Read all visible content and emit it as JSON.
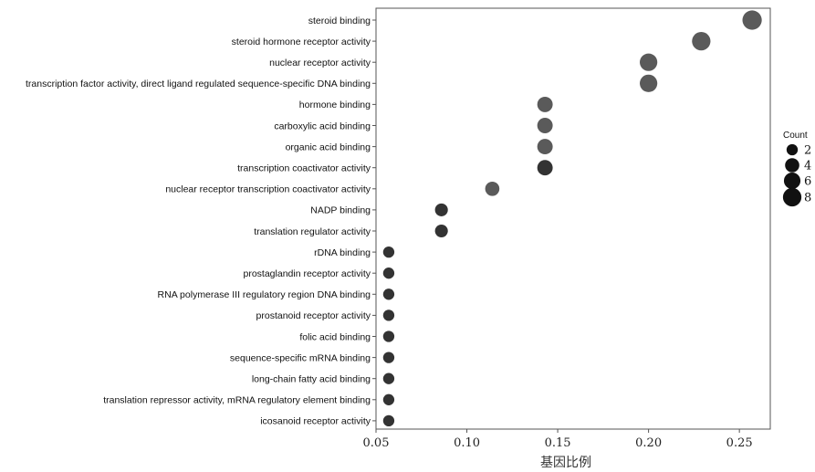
{
  "chart_data": {
    "type": "scatter",
    "title": "",
    "xlabel": "基因比例",
    "ylabel": "",
    "xlim": [
      0.05,
      0.267
    ],
    "xticks": [
      "0.05",
      "0.10",
      "0.15",
      "0.20",
      "0.25"
    ],
    "xtick_values": [
      0.05,
      0.1,
      0.15,
      0.2,
      0.25
    ],
    "grid": false,
    "legend": {
      "title": "Count",
      "position": "right",
      "entries": [
        {
          "label": "2",
          "value": 2
        },
        {
          "label": "4",
          "value": 4
        },
        {
          "label": "6",
          "value": 6
        },
        {
          "label": "8",
          "value": 8
        }
      ]
    },
    "point_colors": {
      "high": "#5a5a5a",
      "low": "#333333"
    },
    "points": [
      {
        "category": "steroid binding",
        "x": 0.257,
        "count": 9,
        "color": "#5a5a5a"
      },
      {
        "category": "steroid hormone receptor activity",
        "x": 0.229,
        "count": 8,
        "color": "#5a5a5a"
      },
      {
        "category": "nuclear receptor activity",
        "x": 0.2,
        "count": 7,
        "color": "#5a5a5a"
      },
      {
        "category": "transcription factor activity, direct ligand regulated sequence-specific DNA binding",
        "x": 0.2,
        "count": 7,
        "color": "#5a5a5a"
      },
      {
        "category": "hormone binding",
        "x": 0.143,
        "count": 5,
        "color": "#5a5a5a"
      },
      {
        "category": "carboxylic acid binding",
        "x": 0.143,
        "count": 5,
        "color": "#5a5a5a"
      },
      {
        "category": "organic acid binding",
        "x": 0.143,
        "count": 5,
        "color": "#5a5a5a"
      },
      {
        "category": "transcription coactivator activity",
        "x": 0.143,
        "count": 5,
        "color": "#333333"
      },
      {
        "category": "nuclear receptor transcription coactivator activity",
        "x": 0.114,
        "count": 4,
        "color": "#5a5a5a"
      },
      {
        "category": "NADP binding",
        "x": 0.086,
        "count": 3,
        "color": "#333333"
      },
      {
        "category": "translation regulator activity",
        "x": 0.086,
        "count": 3,
        "color": "#333333"
      },
      {
        "category": "rDNA binding",
        "x": 0.057,
        "count": 2,
        "color": "#333333"
      },
      {
        "category": "prostaglandin receptor activity",
        "x": 0.057,
        "count": 2,
        "color": "#333333"
      },
      {
        "category": "RNA polymerase III regulatory region DNA binding",
        "x": 0.057,
        "count": 2,
        "color": "#333333"
      },
      {
        "category": "prostanoid receptor activity",
        "x": 0.057,
        "count": 2,
        "color": "#333333"
      },
      {
        "category": "folic acid binding",
        "x": 0.057,
        "count": 2,
        "color": "#333333"
      },
      {
        "category": "sequence-specific mRNA binding",
        "x": 0.057,
        "count": 2,
        "color": "#333333"
      },
      {
        "category": "long-chain fatty acid binding",
        "x": 0.057,
        "count": 2,
        "color": "#333333"
      },
      {
        "category": "translation repressor activity, mRNA regulatory element binding",
        "x": 0.057,
        "count": 2,
        "color": "#333333"
      },
      {
        "category": "icosanoid receptor activity",
        "x": 0.057,
        "count": 2,
        "color": "#333333"
      }
    ]
  }
}
